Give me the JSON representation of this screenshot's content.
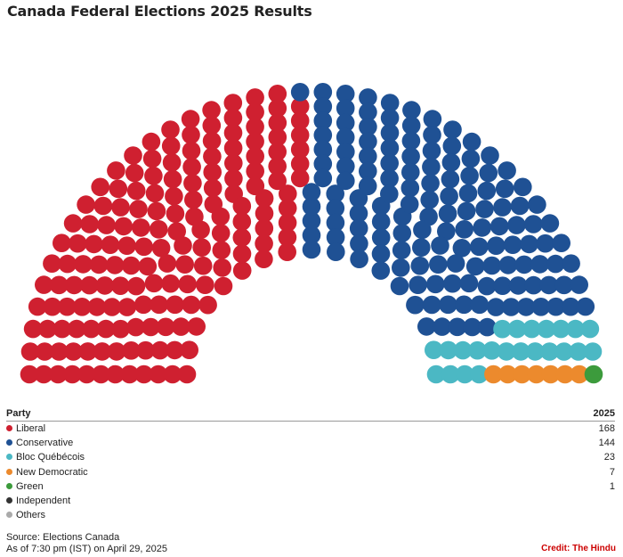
{
  "title": "Canada Federal Elections 2025 Results",
  "chart_data": {
    "type": "parliament",
    "title": "Canada Federal Elections 2025 Results",
    "series": [
      {
        "name": "Liberal",
        "seats": 168,
        "color": "#cf2030"
      },
      {
        "name": "Conservative",
        "seats": 144,
        "color": "#1f5194"
      },
      {
        "name": "Bloc Québécois",
        "seats": 23,
        "color": "#4bb8c4"
      },
      {
        "name": "New Democratic",
        "seats": 7,
        "color": "#ec8a2d"
      },
      {
        "name": "Green",
        "seats": 1,
        "color": "#3c9b3c"
      },
      {
        "name": "Independent",
        "seats": null,
        "color": "#333333"
      },
      {
        "name": "Others",
        "seats": null,
        "color": "#aaaaaa"
      }
    ]
  },
  "table": {
    "party_header": "Party",
    "year_header": "2025"
  },
  "footer": {
    "source": "Source: Elections Canada",
    "asof": "As of 7:30 pm (IST) on April 29, 2025",
    "credit": "Credit: The Hindu"
  }
}
